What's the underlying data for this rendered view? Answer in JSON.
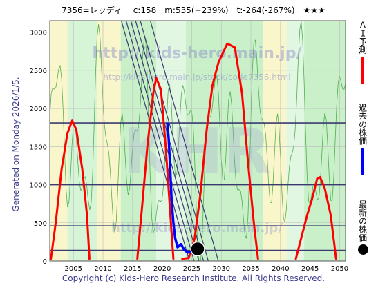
{
  "header": {
    "title": "7356=レッディ　 c:158　m:535(+239%)　t:-264(-267%)　★★★"
  },
  "side_label": "Generated on Monday 2026/1/5.",
  "footer": "Copyright (c) Kids-Hero Research Institute. All Rights Reserved.",
  "watermarks": {
    "url_main": "http://kids-hero.main.jp/",
    "url_sub": "http://kids-hero.main.jp/stock/code7356.html",
    "url_bottom": "http://kids-hero.main.jp/"
  },
  "legend": [
    {
      "label": "ＡＩ予測",
      "color": "#ff0000",
      "kind": "line"
    },
    {
      "label": "過去の株価",
      "color": "#0000ff",
      "kind": "line"
    },
    {
      "label": "最新の株価",
      "color": "#000000",
      "kind": "dot"
    }
  ],
  "chart_data": {
    "type": "line",
    "xlim": [
      2001,
      2051
    ],
    "ylim": [
      0,
      3150
    ],
    "xticks": [
      2005,
      2010,
      2015,
      2020,
      2025,
      2030,
      2035,
      2040,
      2045,
      2050
    ],
    "yticks": [
      0,
      500,
      1000,
      1500,
      2000,
      2500,
      3000
    ],
    "horizontal_lines": [
      140,
      460,
      1000,
      1810
    ],
    "series": [
      {
        "name": "ＡＩ予測",
        "color": "#ff0000",
        "segments": [
          [
            [
              2001.2,
              30
            ],
            [
              2002,
              500
            ],
            [
              2003,
              1200
            ],
            [
              2004,
              1680
            ],
            [
              2004.8,
              1840
            ],
            [
              2005.5,
              1720
            ],
            [
              2006.5,
              1200
            ],
            [
              2007.3,
              600
            ],
            [
              2007.7,
              30
            ]
          ],
          [
            [
              2015.8,
              30
            ],
            [
              2016.6,
              700
            ],
            [
              2017.5,
              1500
            ],
            [
              2018.5,
              2200
            ],
            [
              2019,
              2400
            ],
            [
              2019.8,
              2250
            ],
            [
              2020.6,
              1500
            ],
            [
              2021.3,
              700
            ],
            [
              2021.9,
              30
            ]
          ],
          [
            [
              2023.4,
              30
            ],
            [
              2024.5,
              40
            ],
            [
              2025.5,
              300
            ],
            [
              2026.5,
              900
            ],
            [
              2027.5,
              1700
            ],
            [
              2028.5,
              2300
            ],
            [
              2029.5,
              2600
            ],
            [
              2031,
              2850
            ],
            [
              2032.3,
              2800
            ],
            [
              2033.5,
              2200
            ],
            [
              2034.5,
              1300
            ],
            [
              2035.5,
              500
            ],
            [
              2036.2,
              30
            ]
          ],
          [
            [
              2042.6,
              30
            ],
            [
              2043.5,
              300
            ],
            [
              2044.5,
              600
            ],
            [
              2045.3,
              800
            ],
            [
              2046.2,
              1080
            ],
            [
              2046.7,
              1100
            ],
            [
              2047.5,
              950
            ],
            [
              2048.5,
              600
            ],
            [
              2049.4,
              30
            ]
          ]
        ]
      },
      {
        "name": "過去の株価",
        "color": "#0000ff",
        "points": [
          [
            2020.9,
            1800
          ],
          [
            2021.1,
            1600
          ],
          [
            2021.3,
            1300
          ],
          [
            2021.6,
            800
          ],
          [
            2021.9,
            500
          ],
          [
            2022.2,
            300
          ],
          [
            2022.6,
            180
          ],
          [
            2023.2,
            220
          ],
          [
            2023.7,
            150
          ],
          [
            2024.3,
            110
          ],
          [
            2025,
            130
          ],
          [
            2026,
            160
          ]
        ]
      }
    ],
    "latest_point": {
      "x": 2026,
      "y": 158
    },
    "trend_lines": [
      {
        "from": [
          2013.1,
          3150
        ],
        "to": [
          2024.6,
          0
        ]
      },
      {
        "from": [
          2013.9,
          3150
        ],
        "to": [
          2025.4,
          0
        ]
      },
      {
        "from": [
          2014.7,
          3150
        ],
        "to": [
          2026.2,
          0
        ]
      },
      {
        "from": [
          2015.5,
          3150
        ],
        "to": [
          2027.0,
          0
        ]
      },
      {
        "from": [
          2016.3,
          3150
        ],
        "to": [
          2027.8,
          0
        ]
      },
      {
        "from": [
          2018.0,
          3150
        ],
        "to": [
          2029.5,
          0
        ]
      }
    ]
  }
}
